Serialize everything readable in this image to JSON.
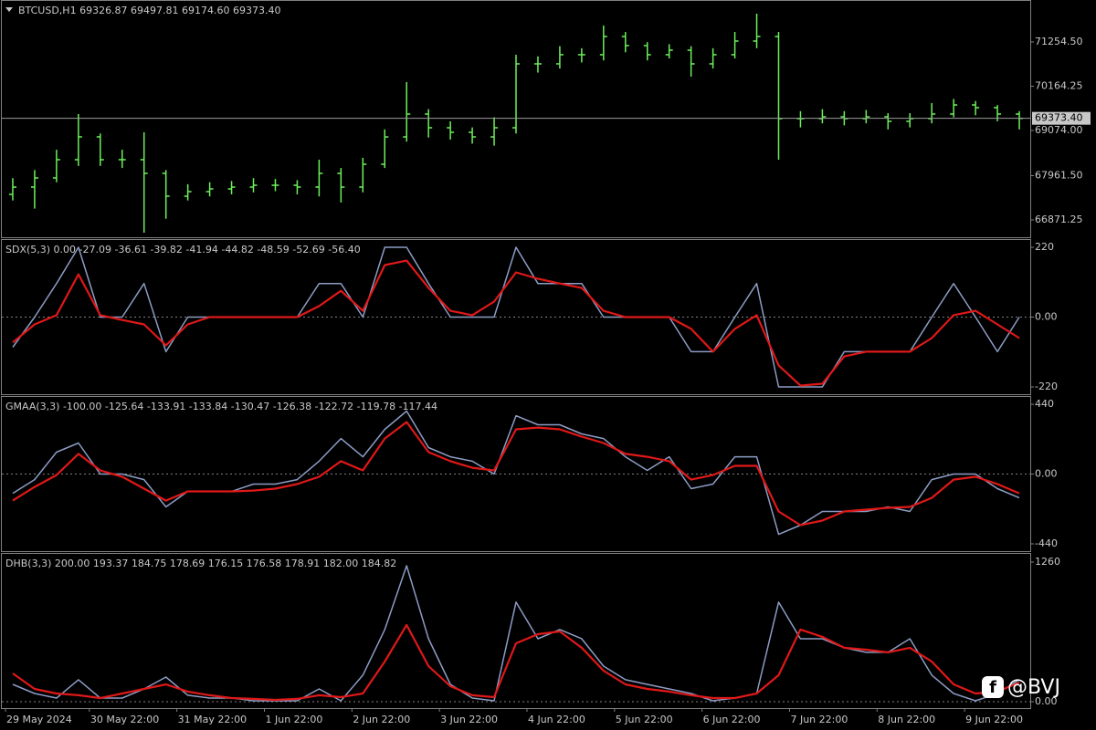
{
  "chart_data": [
    {
      "type": "candlestick",
      "title": "BTCUSD,H1  69326.87 69497.81 69174.60 69373.40",
      "color": "#6cf05a",
      "xlim": [
        0,
        282
      ],
      "ylim": [
        66444,
        72288
      ],
      "grid": false,
      "yticks": [
        {
          "value": 71254.5,
          "label": "71254.50"
        },
        70164.25,
        {
          "value": 69074,
          "label": "69074.00"
        },
        {
          "value": 67961.5,
          "label": "67961.50"
        },
        66871.25
      ],
      "current_price": {
        "value": 69373.4,
        "label": "69373.40"
      },
      "x": [
        3,
        9,
        15,
        21,
        27,
        33,
        39,
        45,
        51,
        57,
        63,
        69,
        75,
        81,
        87,
        93,
        99,
        105,
        111,
        117,
        123,
        129,
        135,
        141,
        147,
        153,
        159,
        165,
        171,
        177,
        183,
        189,
        195,
        201,
        207,
        213,
        219,
        225,
        231,
        237,
        243,
        249,
        255,
        261,
        267,
        273,
        279
      ],
      "open": [
        67500,
        67680,
        67905,
        68355,
        68917,
        68355,
        68355,
        68017,
        67455,
        67568,
        67635,
        67680,
        67725,
        67725,
        67680,
        68017,
        67680,
        68242,
        68916,
        69479,
        69141,
        69029,
        68916,
        69141,
        70715,
        70715,
        70940,
        70940,
        71389,
        71165,
        70940,
        71052,
        70715,
        70940,
        71277,
        71389,
        69366,
        69366,
        69411,
        69366,
        69411,
        69299,
        69366,
        69479,
        69703,
        69636,
        69479
      ],
      "high": [
        67900,
        68100,
        68600,
        69479,
        69000,
        68600,
        69029,
        68100,
        67750,
        67800,
        67830,
        67900,
        67880,
        67850,
        68355,
        68150,
        68400,
        69100,
        70265,
        69600,
        69300,
        69150,
        69400,
        70940,
        70900,
        71150,
        71100,
        71659,
        71500,
        71250,
        71200,
        71150,
        71100,
        71500,
        71951,
        71500,
        69550,
        69600,
        69550,
        69580,
        69500,
        69500,
        69750,
        69850,
        69800,
        69700,
        69550
      ],
      "low": [
        67350,
        67150,
        67800,
        68200,
        68200,
        68150,
        66556,
        66900,
        67350,
        67450,
        67500,
        67550,
        67580,
        67500,
        67450,
        67300,
        67550,
        68150,
        68800,
        68900,
        68850,
        68750,
        68700,
        69000,
        70500,
        70600,
        70750,
        70800,
        71000,
        70800,
        70850,
        70400,
        70600,
        70850,
        71100,
        68355,
        69150,
        69250,
        69200,
        69250,
        69100,
        69150,
        69250,
        69400,
        69450,
        69300,
        69100
      ],
      "close": [
        67680,
        67905,
        68355,
        68917,
        68355,
        68355,
        68017,
        67455,
        67568,
        67635,
        67680,
        67725,
        67725,
        67680,
        68017,
        67680,
        68242,
        68916,
        69479,
        69141,
        69029,
        68916,
        69141,
        70715,
        70715,
        70940,
        70940,
        71389,
        71165,
        70940,
        71052,
        70715,
        70940,
        71277,
        71389,
        69366,
        69366,
        69411,
        69366,
        69411,
        69299,
        69366,
        69479,
        69703,
        69636,
        69479,
        69373
      ]
    },
    {
      "type": "line",
      "title": "SDX(5,3) 0.00 -27.09 -36.61 -39.82 -41.94 -44.82 -48.59 -52.69 -56.40",
      "xlim": [
        0,
        282
      ],
      "ylim": [
        -243,
        246
      ],
      "grid": "zero",
      "yticks": [
        220,
        {
          "value": 0,
          "label": "0.00"
        },
        -220
      ],
      "x": [
        3,
        9,
        15,
        21,
        27,
        33,
        39,
        45,
        51,
        57,
        63,
        69,
        75,
        81,
        87,
        93,
        99,
        105,
        111,
        117,
        123,
        129,
        135,
        141,
        147,
        153,
        159,
        165,
        171,
        177,
        183,
        189,
        195,
        201,
        207,
        213,
        219,
        225,
        231,
        237,
        243,
        249,
        255,
        261,
        267,
        273,
        279
      ],
      "series": [
        {
          "color": "#8c9cc4",
          "values": [
            -95,
            0,
            106,
            220,
            0,
            0,
            106,
            -109,
            0,
            0,
            0,
            0,
            0,
            0,
            106,
            106,
            0,
            220,
            220,
            106,
            0,
            0,
            0,
            220,
            106,
            106,
            106,
            0,
            0,
            0,
            0,
            -109,
            -109,
            0,
            106,
            -220,
            -220,
            -220,
            -109,
            -109,
            -109,
            -109,
            0,
            106,
            0,
            -109,
            0
          ]
        },
        {
          "color": "#e01818",
          "values": [
            -80,
            -23,
            6,
            135,
            6,
            -9,
            -23,
            -89,
            -23,
            0,
            0,
            0,
            0,
            0,
            35,
            83,
            20,
            164,
            178,
            92,
            20,
            6,
            49,
            141,
            121,
            106,
            92,
            20,
            0,
            0,
            0,
            -37,
            -109,
            -37,
            6,
            -152,
            -216,
            -210,
            -124,
            -109,
            -109,
            -109,
            -66,
            6,
            20,
            -23,
            -66
          ]
        }
      ]
    },
    {
      "type": "line",
      "title": "GMAA(3,3) -100.00 -125.64 -133.91 -133.84 -130.47 -126.38 -122.72 -119.78 -117.44",
      "xlim": [
        0,
        282
      ],
      "ylim": [
        -486,
        492
      ],
      "grid": "zero",
      "yticks": [
        440,
        {
          "value": 0,
          "label": "0.00"
        },
        -440
      ],
      "x": [
        3,
        9,
        15,
        21,
        27,
        33,
        39,
        45,
        51,
        57,
        63,
        69,
        75,
        81,
        87,
        93,
        99,
        105,
        111,
        117,
        123,
        129,
        135,
        141,
        147,
        153,
        159,
        165,
        171,
        177,
        183,
        189,
        195,
        201,
        207,
        213,
        219,
        225,
        231,
        237,
        243,
        249,
        255,
        261,
        267,
        273,
        279
      ],
      "series": [
        {
          "color": "#8c9cc4",
          "values": [
            -121,
            -35,
            138,
            196,
            0,
            0,
            -35,
            -207,
            -109,
            -109,
            -109,
            -63,
            -63,
            -35,
            81,
            224,
            109,
            282,
            397,
            167,
            109,
            81,
            0,
            368,
            311,
            311,
            253,
            224,
            109,
            23,
            109,
            -92,
            -63,
            109,
            109,
            -380,
            -322,
            -236,
            -236,
            -236,
            -207,
            -236,
            -35,
            0,
            0,
            -92,
            -150
          ]
        },
        {
          "color": "#e01818",
          "values": [
            -167,
            -81,
            -6,
            127,
            23,
            -17,
            -92,
            -167,
            -109,
            -109,
            -109,
            -104,
            -92,
            -63,
            -17,
            81,
            23,
            224,
            328,
            138,
            81,
            40,
            23,
            282,
            293,
            282,
            236,
            196,
            127,
            109,
            81,
            -35,
            -6,
            52,
            52,
            -236,
            -322,
            -293,
            -236,
            -224,
            -213,
            -207,
            -150,
            -35,
            -17,
            -63,
            -121
          ]
        }
      ]
    },
    {
      "type": "line",
      "title": "DHB(3,3) 200.00 193.37 184.75 178.69 176.15 176.58 178.91 182.00 184.82",
      "xlim": [
        0,
        282
      ],
      "ylim": [
        -58,
        1342
      ],
      "grid": "zero",
      "yticks": [
        1260,
        {
          "value": 0,
          "label": "0.00"
        }
      ],
      "xticks": [
        {
          "value": 1,
          "label": "29 May 2024"
        },
        {
          "value": 24,
          "label": "30 May 22:00"
        },
        {
          "value": 48,
          "label": "31 May 22:00"
        },
        {
          "value": 72,
          "label": "1 Jun 22:00"
        },
        {
          "value": 96,
          "label": "2 Jun 22:00"
        },
        {
          "value": 120,
          "label": "3 Jun 22:00"
        },
        {
          "value": 144,
          "label": "4 Jun 22:00"
        },
        {
          "value": 168,
          "label": "5 Jun 22:00"
        },
        {
          "value": 192,
          "label": "6 Jun 22:00"
        },
        {
          "value": 216,
          "label": "7 Jun 22:00"
        },
        {
          "value": 240,
          "label": "8 Jun 22:00"
        },
        {
          "value": 264,
          "label": "9 Jun 22:00"
        }
      ],
      "x": [
        3,
        9,
        15,
        21,
        27,
        33,
        39,
        45,
        51,
        57,
        63,
        69,
        75,
        81,
        87,
        93,
        99,
        105,
        111,
        117,
        123,
        129,
        135,
        141,
        147,
        153,
        159,
        165,
        171,
        177,
        183,
        189,
        195,
        201,
        207,
        213,
        219,
        225,
        231,
        237,
        243,
        249,
        255,
        261,
        267,
        273,
        279
      ],
      "series": [
        {
          "color": "#8c9cc4",
          "values": [
            156,
            74,
            33,
            198,
            33,
            33,
            115,
            222,
            58,
            33,
            33,
            8,
            8,
            8,
            115,
            8,
            239,
            651,
            1227,
            568,
            156,
            33,
            8,
            898,
            568,
            651,
            568,
            321,
            198,
            156,
            115,
            74,
            8,
            33,
            74,
            898,
            568,
            568,
            486,
            445,
            445,
            568,
            239,
            74,
            8,
            74,
            198
          ]
        },
        {
          "color": "#e01818",
          "values": [
            255,
            115,
            74,
            58,
            33,
            74,
            115,
            156,
            91,
            58,
            33,
            25,
            16,
            25,
            58,
            41,
            74,
            362,
            692,
            321,
            140,
            58,
            41,
            527,
            609,
            634,
            486,
            280,
            156,
            115,
            91,
            58,
            33,
            33,
            74,
            239,
            651,
            585,
            486,
            469,
            445,
            486,
            362,
            156,
            74,
            91,
            173
          ]
        }
      ]
    }
  ],
  "watermark": "@BVJ"
}
